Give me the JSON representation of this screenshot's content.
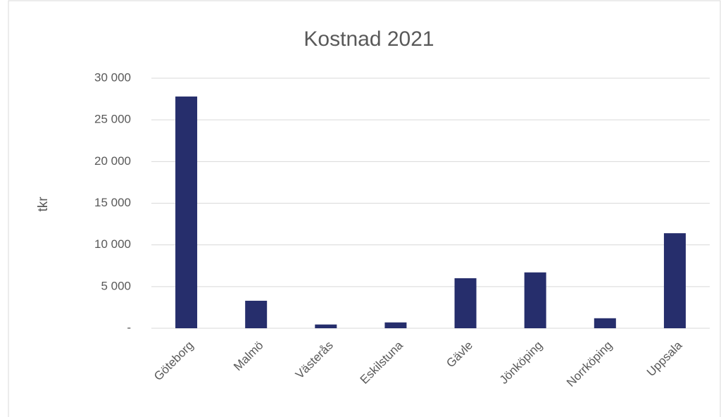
{
  "chart_data": {
    "type": "bar",
    "title": "Kostnad 2021",
    "y_label": "tkr",
    "categories": [
      "Göteborg",
      "Malmö",
      "Västerås",
      "Eskilstuna",
      "Gävle",
      "Jönköping",
      "Norrköping",
      "Uppsala"
    ],
    "values": [
      27800,
      3300,
      450,
      700,
      6000,
      6700,
      1200,
      11400
    ],
    "color": "#262e6c",
    "ylim": [
      0,
      30000
    ],
    "yticks": [
      {
        "value": 0,
        "label": "-"
      },
      {
        "value": 5000,
        "label": "5 000"
      },
      {
        "value": 10000,
        "label": "10 000"
      },
      {
        "value": 15000,
        "label": "15 000"
      },
      {
        "value": 20000,
        "label": "20 000"
      },
      {
        "value": 25000,
        "label": "25 000"
      },
      {
        "value": 30000,
        "label": "30 000"
      }
    ],
    "grid": true
  }
}
